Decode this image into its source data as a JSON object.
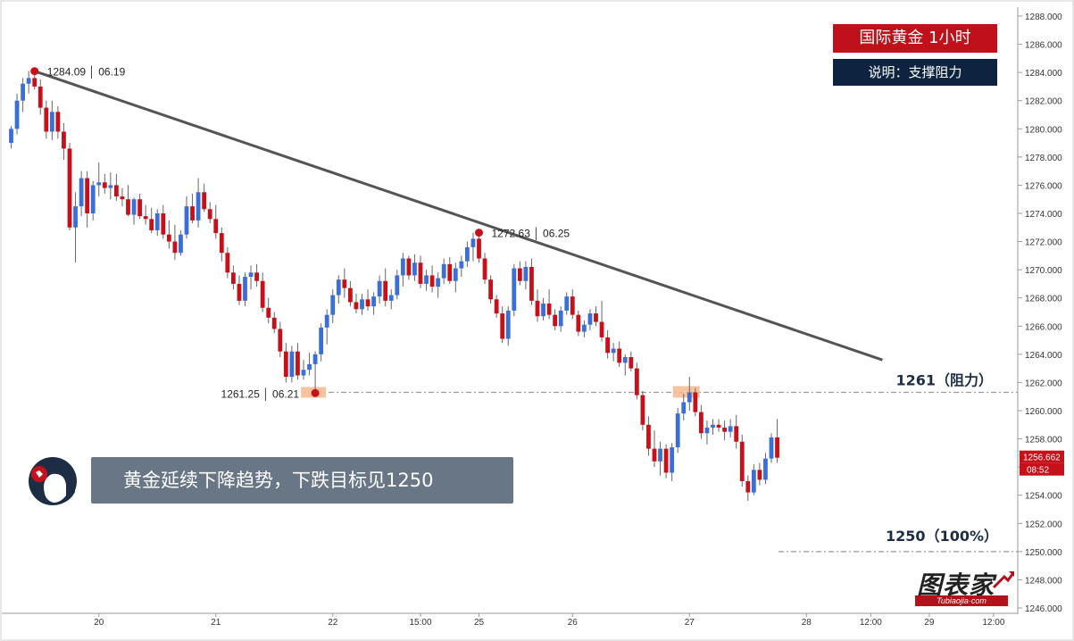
{
  "title": "国际黄金  1小时",
  "subtitle": "说明：支撑阻力",
  "banner": "黄金延续下降趋势，下跌目标见1250",
  "logo": {
    "main": "图表家",
    "sub": "Tubiaojia·com"
  },
  "colors": {
    "up": "#3a6fd8",
    "down": "#c8101a",
    "trend": "#555555",
    "level": "#9a9a9a",
    "marker": "#c8101a",
    "highlight": "#f5b88f"
  },
  "chart_data": {
    "type": "candlestick",
    "ylim": [
      1246,
      1288
    ],
    "y_ticks": [
      "1246.000",
      "1248.000",
      "1250.000",
      "1252.000",
      "1254.000",
      "1256.000",
      "1258.000",
      "1260.000",
      "1262.000",
      "1264.000",
      "1266.000",
      "1268.000",
      "1270.000",
      "1272.000",
      "1274.000",
      "1276.000",
      "1278.000",
      "1280.000",
      "1282.000",
      "1284.000",
      "1286.000",
      "1288.000"
    ],
    "x_ticks": [
      {
        "label": "20",
        "index": 15
      },
      {
        "label": "21",
        "index": 35
      },
      {
        "label": "22",
        "index": 55
      },
      {
        "label": "15:00",
        "index": 70
      },
      {
        "label": "25",
        "index": 80
      },
      {
        "label": "26",
        "index": 96
      },
      {
        "label": "27",
        "index": 116
      },
      {
        "label": "28",
        "index": 136
      },
      {
        "label": "12:00",
        "index": 147
      },
      {
        "label": "29",
        "index": 157
      },
      {
        "label": "12:00",
        "index": 168
      }
    ],
    "candles": [
      [
        1279.0,
        1280.2,
        1278.6,
        1280.0
      ],
      [
        1280.0,
        1282.5,
        1279.6,
        1282.0
      ],
      [
        1282.0,
        1283.6,
        1281.2,
        1283.2
      ],
      [
        1283.2,
        1284.1,
        1282.5,
        1283.6
      ],
      [
        1283.6,
        1284.09,
        1282.8,
        1283.0
      ],
      [
        1283.0,
        1283.5,
        1281.0,
        1281.5
      ],
      [
        1281.5,
        1282.0,
        1279.3,
        1279.8
      ],
      [
        1279.8,
        1282.0,
        1279.2,
        1281.2
      ],
      [
        1281.2,
        1281.6,
        1279.3,
        1279.8
      ],
      [
        1279.8,
        1280.4,
        1277.8,
        1278.6
      ],
      [
        1278.6,
        1279.0,
        1272.8,
        1273.0
      ],
      [
        1273.0,
        1275.5,
        1270.5,
        1274.5
      ],
      [
        1274.5,
        1277.0,
        1273.8,
        1276.5
      ],
      [
        1276.5,
        1277.0,
        1273.0,
        1274.0
      ],
      [
        1274.0,
        1276.3,
        1273.5,
        1276.0
      ],
      [
        1276.0,
        1277.6,
        1275.2,
        1276.2
      ],
      [
        1276.2,
        1276.8,
        1275.4,
        1275.8
      ],
      [
        1275.8,
        1276.9,
        1275.0,
        1276.0
      ],
      [
        1276.0,
        1276.8,
        1274.9,
        1275.2
      ],
      [
        1275.2,
        1275.8,
        1274.5,
        1275.0
      ],
      [
        1275.0,
        1276.0,
        1273.8,
        1273.9
      ],
      [
        1273.9,
        1275.1,
        1273.2,
        1275.0
      ],
      [
        1275.0,
        1275.4,
        1273.6,
        1273.8
      ],
      [
        1273.8,
        1274.6,
        1273.2,
        1273.6
      ],
      [
        1273.6,
        1274.4,
        1272.6,
        1272.8
      ],
      [
        1272.8,
        1274.3,
        1272.4,
        1274.0
      ],
      [
        1274.0,
        1274.6,
        1272.2,
        1272.5
      ],
      [
        1272.5,
        1273.5,
        1271.5,
        1272.0
      ],
      [
        1272.0,
        1273.2,
        1270.7,
        1271.2
      ],
      [
        1271.2,
        1272.8,
        1271.0,
        1272.5
      ],
      [
        1272.5,
        1275.2,
        1272.2,
        1274.5
      ],
      [
        1274.5,
        1275.4,
        1273.3,
        1273.5
      ],
      [
        1273.5,
        1276.5,
        1273.0,
        1275.5
      ],
      [
        1275.5,
        1276.1,
        1274.1,
        1274.3
      ],
      [
        1274.3,
        1274.8,
        1273.3,
        1273.6
      ],
      [
        1273.6,
        1274.6,
        1272.2,
        1272.6
      ],
      [
        1272.6,
        1273.0,
        1270.6,
        1271.2
      ],
      [
        1271.2,
        1271.6,
        1269.4,
        1269.8
      ],
      [
        1269.8,
        1270.3,
        1268.6,
        1269.0
      ],
      [
        1269.0,
        1269.6,
        1267.5,
        1267.8
      ],
      [
        1267.8,
        1269.8,
        1267.4,
        1269.5
      ],
      [
        1269.5,
        1270.3,
        1268.6,
        1269.8
      ],
      [
        1269.8,
        1270.4,
        1268.8,
        1269.2
      ],
      [
        1269.2,
        1269.8,
        1267.0,
        1267.3
      ],
      [
        1267.3,
        1268.0,
        1266.2,
        1266.6
      ],
      [
        1266.6,
        1267.0,
        1265.5,
        1265.8
      ],
      [
        1265.8,
        1266.3,
        1263.8,
        1264.2
      ],
      [
        1264.2,
        1264.8,
        1262.0,
        1262.4
      ],
      [
        1262.4,
        1264.6,
        1262.0,
        1264.2
      ],
      [
        1264.2,
        1264.8,
        1262.2,
        1262.5
      ],
      [
        1262.5,
        1263.6,
        1262.2,
        1262.9
      ],
      [
        1262.9,
        1264.1,
        1262.5,
        1263.3
      ],
      [
        1263.3,
        1264.2,
        1261.25,
        1264.0
      ],
      [
        1264.0,
        1266.2,
        1263.5,
        1265.9
      ],
      [
        1265.9,
        1267.2,
        1264.7,
        1266.8
      ],
      [
        1266.8,
        1268.6,
        1266.2,
        1268.2
      ],
      [
        1268.2,
        1269.6,
        1267.6,
        1269.3
      ],
      [
        1269.3,
        1270.1,
        1268.0,
        1268.7
      ],
      [
        1268.7,
        1269.2,
        1267.4,
        1267.7
      ],
      [
        1267.7,
        1268.3,
        1266.9,
        1267.2
      ],
      [
        1267.2,
        1268.3,
        1266.8,
        1267.9
      ],
      [
        1267.9,
        1268.6,
        1267.1,
        1267.4
      ],
      [
        1267.4,
        1268.4,
        1266.8,
        1268.1
      ],
      [
        1268.1,
        1269.6,
        1267.6,
        1269.2
      ],
      [
        1269.2,
        1270.1,
        1267.4,
        1267.8
      ],
      [
        1267.8,
        1268.6,
        1267.2,
        1268.2
      ],
      [
        1268.2,
        1270.0,
        1267.9,
        1269.6
      ],
      [
        1269.6,
        1271.2,
        1268.8,
        1270.8
      ],
      [
        1270.8,
        1271.0,
        1269.3,
        1269.6
      ],
      [
        1269.6,
        1271.1,
        1269.2,
        1270.5
      ],
      [
        1270.5,
        1271.0,
        1268.7,
        1269.0
      ],
      [
        1269.0,
        1270.0,
        1268.5,
        1269.6
      ],
      [
        1269.6,
        1270.3,
        1268.4,
        1268.8
      ],
      [
        1268.8,
        1269.8,
        1268.0,
        1269.4
      ],
      [
        1269.4,
        1270.8,
        1269.0,
        1270.4
      ],
      [
        1270.4,
        1270.9,
        1269.0,
        1269.2
      ],
      [
        1269.2,
        1270.5,
        1268.4,
        1270.1
      ],
      [
        1270.1,
        1271.0,
        1269.5,
        1270.6
      ],
      [
        1270.6,
        1272.0,
        1270.2,
        1271.6
      ],
      [
        1271.6,
        1272.63,
        1270.6,
        1272.2
      ],
      [
        1272.2,
        1272.63,
        1270.5,
        1270.8
      ],
      [
        1270.8,
        1271.2,
        1269.0,
        1269.3
      ],
      [
        1269.3,
        1269.6,
        1267.6,
        1267.9
      ],
      [
        1267.9,
        1268.2,
        1266.6,
        1266.9
      ],
      [
        1266.9,
        1267.4,
        1264.8,
        1265.1
      ],
      [
        1265.1,
        1267.4,
        1264.6,
        1267.1
      ],
      [
        1267.1,
        1270.4,
        1266.7,
        1270.1
      ],
      [
        1270.1,
        1270.6,
        1268.9,
        1269.2
      ],
      [
        1269.2,
        1270.6,
        1268.6,
        1270.2
      ],
      [
        1270.2,
        1270.8,
        1267.5,
        1267.8
      ],
      [
        1267.8,
        1268.6,
        1266.3,
        1266.7
      ],
      [
        1266.7,
        1268.0,
        1266.4,
        1267.6
      ],
      [
        1267.6,
        1268.6,
        1266.5,
        1266.8
      ],
      [
        1266.8,
        1267.2,
        1265.7,
        1266.0
      ],
      [
        1266.0,
        1267.4,
        1265.6,
        1267.1
      ],
      [
        1267.1,
        1268.4,
        1266.8,
        1268.1
      ],
      [
        1268.1,
        1268.6,
        1266.5,
        1266.8
      ],
      [
        1266.8,
        1267.1,
        1265.3,
        1265.6
      ],
      [
        1265.6,
        1266.4,
        1265.2,
        1266.1
      ],
      [
        1266.1,
        1267.2,
        1265.7,
        1266.9
      ],
      [
        1266.9,
        1267.4,
        1266.0,
        1266.3
      ],
      [
        1266.3,
        1267.8,
        1264.9,
        1265.2
      ],
      [
        1265.2,
        1265.7,
        1263.7,
        1264.1
      ],
      [
        1264.1,
        1264.8,
        1263.5,
        1264.4
      ],
      [
        1264.4,
        1264.9,
        1263.1,
        1263.4
      ],
      [
        1263.4,
        1264.0,
        1262.5,
        1263.8
      ],
      [
        1263.8,
        1264.2,
        1262.8,
        1263.0
      ],
      [
        1263.0,
        1263.4,
        1260.8,
        1261.1
      ],
      [
        1261.1,
        1261.4,
        1258.6,
        1259.0
      ],
      [
        1259.0,
        1259.6,
        1256.8,
        1257.3
      ],
      [
        1257.3,
        1258.6,
        1256.0,
        1256.4
      ],
      [
        1256.4,
        1257.8,
        1255.4,
        1257.3
      ],
      [
        1257.3,
        1257.6,
        1255.2,
        1255.6
      ],
      [
        1255.6,
        1257.7,
        1255.0,
        1257.4
      ],
      [
        1257.4,
        1260.2,
        1257.0,
        1259.8
      ],
      [
        1259.8,
        1261.2,
        1259.3,
        1260.6
      ],
      [
        1260.6,
        1262.4,
        1260.0,
        1261.3
      ],
      [
        1261.3,
        1261.6,
        1259.6,
        1259.9
      ],
      [
        1259.9,
        1260.4,
        1258.0,
        1258.4
      ],
      [
        1258.4,
        1259.3,
        1257.6,
        1258.8
      ],
      [
        1258.8,
        1259.4,
        1258.3,
        1259.0
      ],
      [
        1259.0,
        1259.4,
        1258.5,
        1258.8
      ],
      [
        1258.8,
        1259.3,
        1257.9,
        1258.5
      ],
      [
        1258.5,
        1259.4,
        1258.1,
        1258.9
      ],
      [
        1258.9,
        1259.7,
        1257.3,
        1257.8
      ],
      [
        1257.8,
        1258.3,
        1254.6,
        1255.0
      ],
      [
        1255.0,
        1255.4,
        1253.6,
        1254.2
      ],
      [
        1254.2,
        1256.2,
        1254.0,
        1255.8
      ],
      [
        1255.8,
        1256.3,
        1254.7,
        1255.1
      ],
      [
        1255.1,
        1257.0,
        1254.8,
        1256.6
      ],
      [
        1256.6,
        1258.4,
        1256.3,
        1258.1
      ],
      [
        1258.1,
        1259.4,
        1256.3,
        1256.662
      ]
    ],
    "trendline": {
      "from": {
        "index": 4,
        "price": 1284.09
      },
      "to": {
        "index": 149,
        "price": 1263.6
      }
    },
    "marked_points": [
      {
        "index": 4,
        "price": 1284.09,
        "label": "1284.09 │ 06.19"
      },
      {
        "index": 80,
        "price": 1272.63,
        "label": "1272.63 │ 06.25"
      },
      {
        "index": 52,
        "price": 1261.25,
        "label": "1261.25 │ 06.21"
      }
    ],
    "levels": [
      {
        "price": 1261.3,
        "label": "1261（阻力）"
      },
      {
        "price": 1250.0,
        "label": "1250（100%）"
      }
    ],
    "current_price": "1256.662",
    "current_time": "08:52",
    "grid": false
  }
}
